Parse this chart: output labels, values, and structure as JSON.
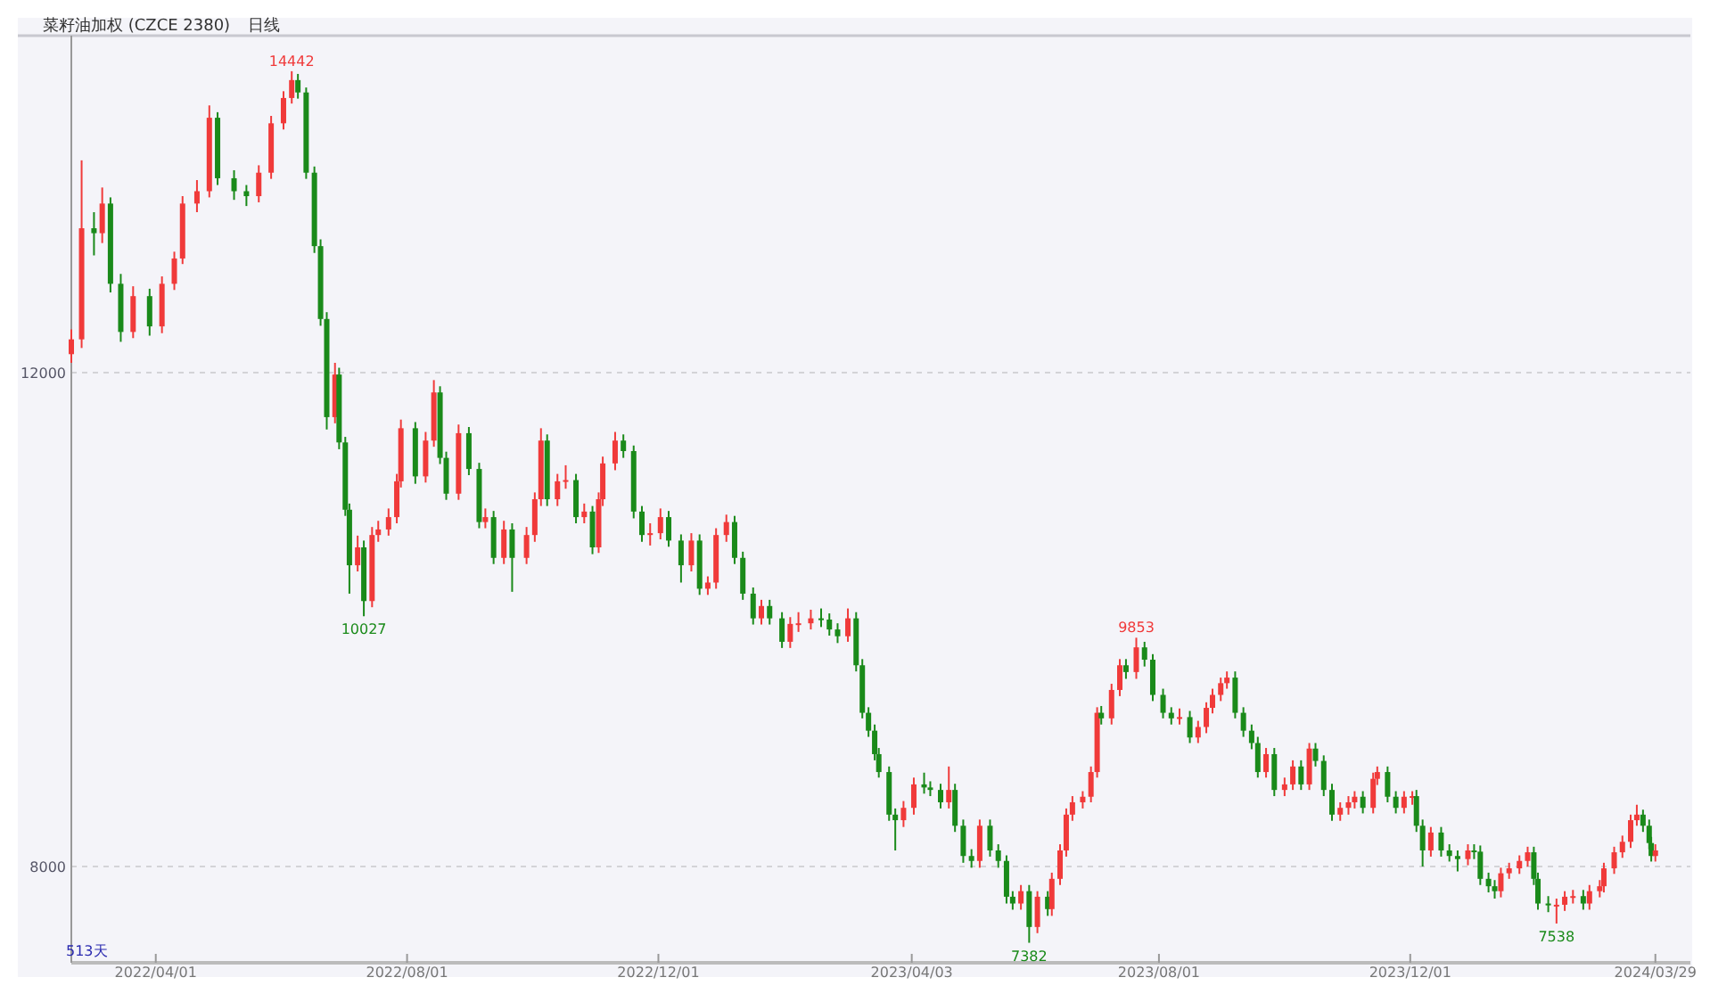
{
  "chart_data": {
    "type": "candlestick",
    "title": "菜籽油加权 (CZCE 2380)",
    "subtitle": "日线",
    "annotations": [
      {
        "text": "14442",
        "x": "2022-06-06",
        "y": 14442
      },
      {
        "text": "10027",
        "x": "2022-07-11",
        "y": 10027
      },
      {
        "text": "7382",
        "x": "2023-05-30",
        "y": 7382
      },
      {
        "text": "9853",
        "x": "2023-07-21",
        "y": 9853
      },
      {
        "text": "7538",
        "x": "2024-02-10",
        "y": 7538
      },
      "513天"
    ],
    "ylim": [
      7220,
      14730
    ],
    "yticks": [
      8000,
      12000
    ],
    "xlim": [
      "2022-02-19",
      "2024-04-15"
    ],
    "xticks": [
      {
        "value": "2022-04-01",
        "label": "2022/04/01"
      },
      {
        "value": "2022-08-01",
        "label": "2022/08/01"
      },
      {
        "value": "2022-12-01",
        "label": "2022/12/01"
      },
      {
        "value": "2023-04-03",
        "label": "2023/04/03"
      },
      {
        "value": "2023-08-01",
        "label": "2023/08/01"
      },
      {
        "value": "2023-12-01",
        "label": "2023/12/01"
      },
      {
        "value": "2024-03-29",
        "label": "2024/03/29"
      }
    ],
    "grid": "y",
    "x": [
      "2022-02-19",
      "2022-02-24",
      "2022-03-02",
      "2022-03-06",
      "2022-03-10",
      "2022-03-15",
      "2022-03-21",
      "2022-03-29",
      "2022-04-04",
      "2022-04-10",
      "2022-04-14",
      "2022-04-21",
      "2022-04-27",
      "2022-05-01",
      "2022-05-09",
      "2022-05-15",
      "2022-05-21",
      "2022-05-27",
      "2022-06-02",
      "2022-06-06",
      "2022-06-09",
      "2022-06-13",
      "2022-06-17",
      "2022-06-20",
      "2022-06-23",
      "2022-06-27",
      "2022-06-29",
      "2022-07-02",
      "2022-07-04",
      "2022-07-08",
      "2022-07-11",
      "2022-07-15",
      "2022-07-18",
      "2022-07-23",
      "2022-07-27",
      "2022-07-29",
      "2022-08-05",
      "2022-08-10",
      "2022-08-14",
      "2022-08-17",
      "2022-08-20",
      "2022-08-26",
      "2022-08-31",
      "2022-09-05",
      "2022-09-08",
      "2022-09-12",
      "2022-09-17",
      "2022-09-21",
      "2022-09-28",
      "2022-10-02",
      "2022-10-05",
      "2022-10-08",
      "2022-10-13",
      "2022-10-17",
      "2022-10-22",
      "2022-10-26",
      "2022-10-30",
      "2022-11-02",
      "2022-11-04",
      "2022-11-10",
      "2022-11-14",
      "2022-11-19",
      "2022-11-23",
      "2022-11-27",
      "2022-12-02",
      "2022-12-06",
      "2022-12-12",
      "2022-12-17",
      "2022-12-21",
      "2022-12-25",
      "2022-12-29",
      "2023-01-03",
      "2023-01-07",
      "2023-01-11",
      "2023-01-16",
      "2023-01-20",
      "2023-01-24",
      "2023-01-30",
      "2023-02-03",
      "2023-02-07",
      "2023-02-13",
      "2023-02-18",
      "2023-02-22",
      "2023-02-26",
      "2023-03-03",
      "2023-03-07",
      "2023-03-10",
      "2023-03-13",
      "2023-03-16",
      "2023-03-18",
      "2023-03-23",
      "2023-03-26",
      "2023-03-30",
      "2023-04-04",
      "2023-04-09",
      "2023-04-12",
      "2023-04-17",
      "2023-04-21",
      "2023-04-24",
      "2023-04-28",
      "2023-05-02",
      "2023-05-06",
      "2023-05-11",
      "2023-05-15",
      "2023-05-19",
      "2023-05-22",
      "2023-05-26",
      "2023-05-30",
      "2023-06-03",
      "2023-06-08",
      "2023-06-10",
      "2023-06-14",
      "2023-06-17",
      "2023-06-20",
      "2023-06-25",
      "2023-06-29",
      "2023-07-02",
      "2023-07-04",
      "2023-07-09",
      "2023-07-13",
      "2023-07-16",
      "2023-07-21",
      "2023-07-25",
      "2023-07-29",
      "2023-08-03",
      "2023-08-07",
      "2023-08-11",
      "2023-08-16",
      "2023-08-20",
      "2023-08-24",
      "2023-08-27",
      "2023-08-31",
      "2023-09-03",
      "2023-09-07",
      "2023-09-11",
      "2023-09-15",
      "2023-09-18",
      "2023-09-22",
      "2023-09-26",
      "2023-10-01",
      "2023-10-05",
      "2023-10-09",
      "2023-10-13",
      "2023-10-16",
      "2023-10-20",
      "2023-10-24",
      "2023-10-28",
      "2023-11-01",
      "2023-11-04",
      "2023-11-08",
      "2023-11-13",
      "2023-11-15",
      "2023-11-20",
      "2023-11-24",
      "2023-11-28",
      "2023-12-02",
      "2023-12-04",
      "2023-12-07",
      "2023-12-11",
      "2023-12-16",
      "2023-12-20",
      "2023-12-24",
      "2023-12-29",
      "2024-01-01",
      "2024-01-04",
      "2024-01-08",
      "2024-01-11",
      "2024-01-14",
      "2024-01-18",
      "2024-01-23",
      "2024-01-27",
      "2024-01-30",
      "2024-02-01",
      "2024-02-06",
      "2024-02-10",
      "2024-02-14",
      "2024-02-18",
      "2024-02-23",
      "2024-02-26",
      "2024-03-02",
      "2024-03-04",
      "2024-03-09",
      "2024-03-13",
      "2024-03-17",
      "2024-03-20",
      "2024-03-23",
      "2024-03-26",
      "2024-03-27",
      "2024-03-29"
    ],
    "ohlc": [
      [
        12150,
        12350,
        12080,
        12270
      ],
      [
        12270,
        13720,
        12200,
        13170
      ],
      [
        13170,
        13300,
        12950,
        13130
      ],
      [
        13130,
        13500,
        13050,
        13370
      ],
      [
        13370,
        13420,
        12650,
        12720
      ],
      [
        12720,
        12800,
        12250,
        12330
      ],
      [
        12330,
        12700,
        12280,
        12620
      ],
      [
        12620,
        12680,
        12300,
        12375
      ],
      [
        12375,
        12780,
        12320,
        12720
      ],
      [
        12720,
        12980,
        12670,
        12925
      ],
      [
        12925,
        13430,
        12880,
        13370
      ],
      [
        13370,
        13560,
        13300,
        13470
      ],
      [
        13470,
        14165,
        13420,
        14065
      ],
      [
        14065,
        14110,
        13520,
        13575
      ],
      [
        13575,
        13640,
        13400,
        13470
      ],
      [
        13470,
        13520,
        13350,
        13430
      ],
      [
        13430,
        13680,
        13380,
        13620
      ],
      [
        13620,
        14080,
        13570,
        14020
      ],
      [
        14020,
        14280,
        13970,
        14225
      ],
      [
        14225,
        14442,
        14180,
        14370
      ],
      [
        14370,
        14420,
        14220,
        14270
      ],
      [
        14270,
        14310,
        13570,
        13620
      ],
      [
        13620,
        13670,
        12970,
        13025
      ],
      [
        13025,
        13080,
        12380,
        12435
      ],
      [
        12435,
        12490,
        11540,
        11640
      ],
      [
        11640,
        12080,
        11590,
        11985
      ],
      [
        11985,
        12040,
        11380,
        11435
      ],
      [
        11435,
        11480,
        10840,
        10890
      ],
      [
        10890,
        10940,
        10210,
        10440
      ],
      [
        10440,
        10680,
        10390,
        10585
      ],
      [
        10585,
        10640,
        10027,
        10150
      ],
      [
        10150,
        10750,
        10100,
        10685
      ],
      [
        10685,
        10800,
        10630,
        10730
      ],
      [
        10730,
        10900,
        10680,
        10830
      ],
      [
        10830,
        11180,
        10780,
        11120
      ],
      [
        11120,
        11620,
        11070,
        11550
      ],
      [
        11550,
        11600,
        11100,
        11160
      ],
      [
        11160,
        11520,
        11110,
        11450
      ],
      [
        11450,
        11940,
        11400,
        11840
      ],
      [
        11840,
        11890,
        11260,
        11310
      ],
      [
        11310,
        11360,
        10970,
        11020
      ],
      [
        11020,
        11580,
        10970,
        11510
      ],
      [
        11510,
        11560,
        11170,
        11220
      ],
      [
        11220,
        11270,
        10740,
        10790
      ],
      [
        10790,
        10900,
        10740,
        10830
      ],
      [
        10830,
        10880,
        10450,
        10500
      ],
      [
        10500,
        10800,
        10450,
        10730
      ],
      [
        10730,
        10780,
        10225,
        10500
      ],
      [
        10500,
        10750,
        10450,
        10685
      ],
      [
        10685,
        11030,
        10630,
        10975
      ],
      [
        10975,
        11550,
        10920,
        11450
      ],
      [
        11450,
        11500,
        10920,
        10975
      ],
      [
        10975,
        11180,
        10920,
        11120
      ],
      [
        11120,
        11250,
        11060,
        11130
      ],
      [
        11130,
        11180,
        10780,
        10830
      ],
      [
        10830,
        10940,
        10780,
        10875
      ],
      [
        10875,
        10920,
        10530,
        10585
      ],
      [
        10585,
        11030,
        10540,
        10975
      ],
      [
        10975,
        11320,
        10920,
        11265
      ],
      [
        11265,
        11520,
        11210,
        11450
      ],
      [
        11450,
        11500,
        11310,
        11365
      ],
      [
        11365,
        11410,
        10820,
        10875
      ],
      [
        10875,
        10920,
        10630,
        10685
      ],
      [
        10685,
        10780,
        10600,
        10700
      ],
      [
        10700,
        10900,
        10650,
        10830
      ],
      [
        10830,
        10880,
        10590,
        10640
      ],
      [
        10640,
        10690,
        10300,
        10440
      ],
      [
        10440,
        10700,
        10390,
        10640
      ],
      [
        10640,
        10690,
        10200,
        10250
      ],
      [
        10250,
        10350,
        10200,
        10300
      ],
      [
        10300,
        10740,
        10250,
        10685
      ],
      [
        10685,
        10850,
        10630,
        10790
      ],
      [
        10790,
        10840,
        10450,
        10500
      ],
      [
        10500,
        10550,
        10160,
        10210
      ],
      [
        10210,
        10260,
        9960,
        10010
      ],
      [
        10010,
        10160,
        9960,
        10110
      ],
      [
        10110,
        10160,
        9960,
        10010
      ],
      [
        10010,
        10060,
        9770,
        9820
      ],
      [
        9820,
        10020,
        9770,
        9965
      ],
      [
        9965,
        10060,
        9900,
        9970
      ],
      [
        9970,
        10080,
        9920,
        10010
      ],
      [
        10010,
        10090,
        9940,
        10000
      ],
      [
        10000,
        10050,
        9870,
        9920
      ],
      [
        9920,
        9970,
        9810,
        9865
      ],
      [
        9865,
        10090,
        9820,
        10010
      ],
      [
        10010,
        10060,
        9580,
        9630
      ],
      [
        9630,
        9680,
        9200,
        9245
      ],
      [
        9245,
        9290,
        9050,
        9100
      ],
      [
        9100,
        9150,
        8860,
        8910
      ],
      [
        8910,
        8960,
        8720,
        8765
      ],
      [
        8765,
        8810,
        8370,
        8420
      ],
      [
        8420,
        8470,
        8130,
        8375
      ],
      [
        8375,
        8530,
        8320,
        8475
      ],
      [
        8475,
        8720,
        8420,
        8665
      ],
      [
        8665,
        8760,
        8590,
        8640
      ],
      [
        8640,
        8690,
        8570,
        8620
      ],
      [
        8620,
        8670,
        8470,
        8520
      ],
      [
        8520,
        8810,
        8470,
        8620
      ],
      [
        8620,
        8670,
        8280,
        8330
      ],
      [
        8330,
        8380,
        8030,
        8085
      ],
      [
        8085,
        8140,
        7990,
        8045
      ],
      [
        8045,
        8380,
        7990,
        8330
      ],
      [
        8330,
        8380,
        8080,
        8130
      ],
      [
        8130,
        8180,
        7990,
        8045
      ],
      [
        8045,
        8090,
        7700,
        7755
      ],
      [
        7755,
        7800,
        7650,
        7700
      ],
      [
        7700,
        7850,
        7650,
        7800
      ],
      [
        7800,
        7850,
        7382,
        7510
      ],
      [
        7510,
        7800,
        7460,
        7755
      ],
      [
        7755,
        7800,
        7600,
        7655
      ],
      [
        7655,
        7950,
        7600,
        7900
      ],
      [
        7900,
        8180,
        7850,
        8130
      ],
      [
        8130,
        8470,
        8080,
        8420
      ],
      [
        8420,
        8570,
        8370,
        8520
      ],
      [
        8520,
        8610,
        8470,
        8565
      ],
      [
        8565,
        8810,
        8520,
        8765
      ],
      [
        8765,
        9290,
        8720,
        9245
      ],
      [
        9245,
        9300,
        9150,
        9200
      ],
      [
        9200,
        9480,
        9150,
        9430
      ],
      [
        9430,
        9680,
        9380,
        9630
      ],
      [
        9630,
        9680,
        9520,
        9575
      ],
      [
        9575,
        9853,
        9520,
        9775
      ],
      [
        9775,
        9820,
        9620,
        9675
      ],
      [
        9675,
        9720,
        9340,
        9390
      ],
      [
        9390,
        9440,
        9200,
        9245
      ],
      [
        9245,
        9290,
        9150,
        9200
      ],
      [
        9200,
        9280,
        9150,
        9210
      ],
      [
        9210,
        9260,
        9000,
        9045
      ],
      [
        9045,
        9180,
        9000,
        9130
      ],
      [
        9130,
        9330,
        9080,
        9285
      ],
      [
        9285,
        9440,
        9240,
        9390
      ],
      [
        9390,
        9530,
        9340,
        9485
      ],
      [
        9485,
        9580,
        9440,
        9530
      ],
      [
        9530,
        9580,
        9200,
        9245
      ],
      [
        9245,
        9290,
        9050,
        9100
      ],
      [
        9100,
        9150,
        8950,
        9000
      ],
      [
        9000,
        9050,
        8720,
        8765
      ],
      [
        8765,
        8960,
        8720,
        8910
      ],
      [
        8910,
        8960,
        8570,
        8620
      ],
      [
        8620,
        8720,
        8570,
        8665
      ],
      [
        8665,
        8860,
        8620,
        8810
      ],
      [
        8810,
        8860,
        8620,
        8665
      ],
      [
        8665,
        9000,
        8620,
        8955
      ],
      [
        8955,
        9000,
        8810,
        8855
      ],
      [
        8855,
        8900,
        8570,
        8620
      ],
      [
        8620,
        8670,
        8370,
        8420
      ],
      [
        8420,
        8520,
        8370,
        8475
      ],
      [
        8475,
        8570,
        8420,
        8520
      ],
      [
        8520,
        8610,
        8470,
        8565
      ],
      [
        8565,
        8610,
        8430,
        8475
      ],
      [
        8475,
        8760,
        8430,
        8710
      ],
      [
        8710,
        8810,
        8660,
        8765
      ],
      [
        8765,
        8810,
        8520,
        8565
      ],
      [
        8565,
        8610,
        8430,
        8475
      ],
      [
        8475,
        8610,
        8430,
        8565
      ],
      [
        8565,
        8610,
        8500,
        8570
      ],
      [
        8570,
        8620,
        8280,
        8330
      ],
      [
        8330,
        8380,
        8000,
        8130
      ],
      [
        8130,
        8320,
        8080,
        8275
      ],
      [
        8275,
        8320,
        8080,
        8130
      ],
      [
        8130,
        8180,
        8040,
        8085
      ],
      [
        8085,
        8130,
        7960,
        8060
      ],
      [
        8060,
        8180,
        8010,
        8130
      ],
      [
        8130,
        8180,
        8060,
        8120
      ],
      [
        8120,
        8170,
        7850,
        7900
      ],
      [
        7900,
        7950,
        7790,
        7840
      ],
      [
        7840,
        7890,
        7740,
        7800
      ],
      [
        7800,
        7990,
        7750,
        7945
      ],
      [
        7945,
        8030,
        7900,
        7985
      ],
      [
        7985,
        8090,
        7940,
        8045
      ],
      [
        8045,
        8160,
        8000,
        8115
      ],
      [
        8115,
        8160,
        7850,
        7900
      ],
      [
        7900,
        7950,
        7650,
        7700
      ],
      [
        7700,
        7760,
        7630,
        7685
      ],
      [
        7685,
        7740,
        7538,
        7690
      ],
      [
        7690,
        7800,
        7640,
        7755
      ],
      [
        7755,
        7810,
        7700,
        7760
      ],
      [
        7760,
        7810,
        7650,
        7700
      ],
      [
        7700,
        7850,
        7650,
        7800
      ],
      [
        7800,
        7890,
        7750,
        7840
      ],
      [
        7840,
        8030,
        7790,
        7985
      ],
      [
        7985,
        8160,
        7940,
        8115
      ],
      [
        8115,
        8250,
        8070,
        8200
      ],
      [
        8200,
        8420,
        8150,
        8375
      ],
      [
        8375,
        8500,
        8330,
        8420
      ],
      [
        8420,
        8460,
        8280,
        8330
      ],
      [
        8330,
        8380,
        8140,
        8190
      ],
      [
        8190,
        8240,
        8040,
        8085
      ],
      [
        8085,
        8180,
        8040,
        8130
      ]
    ]
  }
}
